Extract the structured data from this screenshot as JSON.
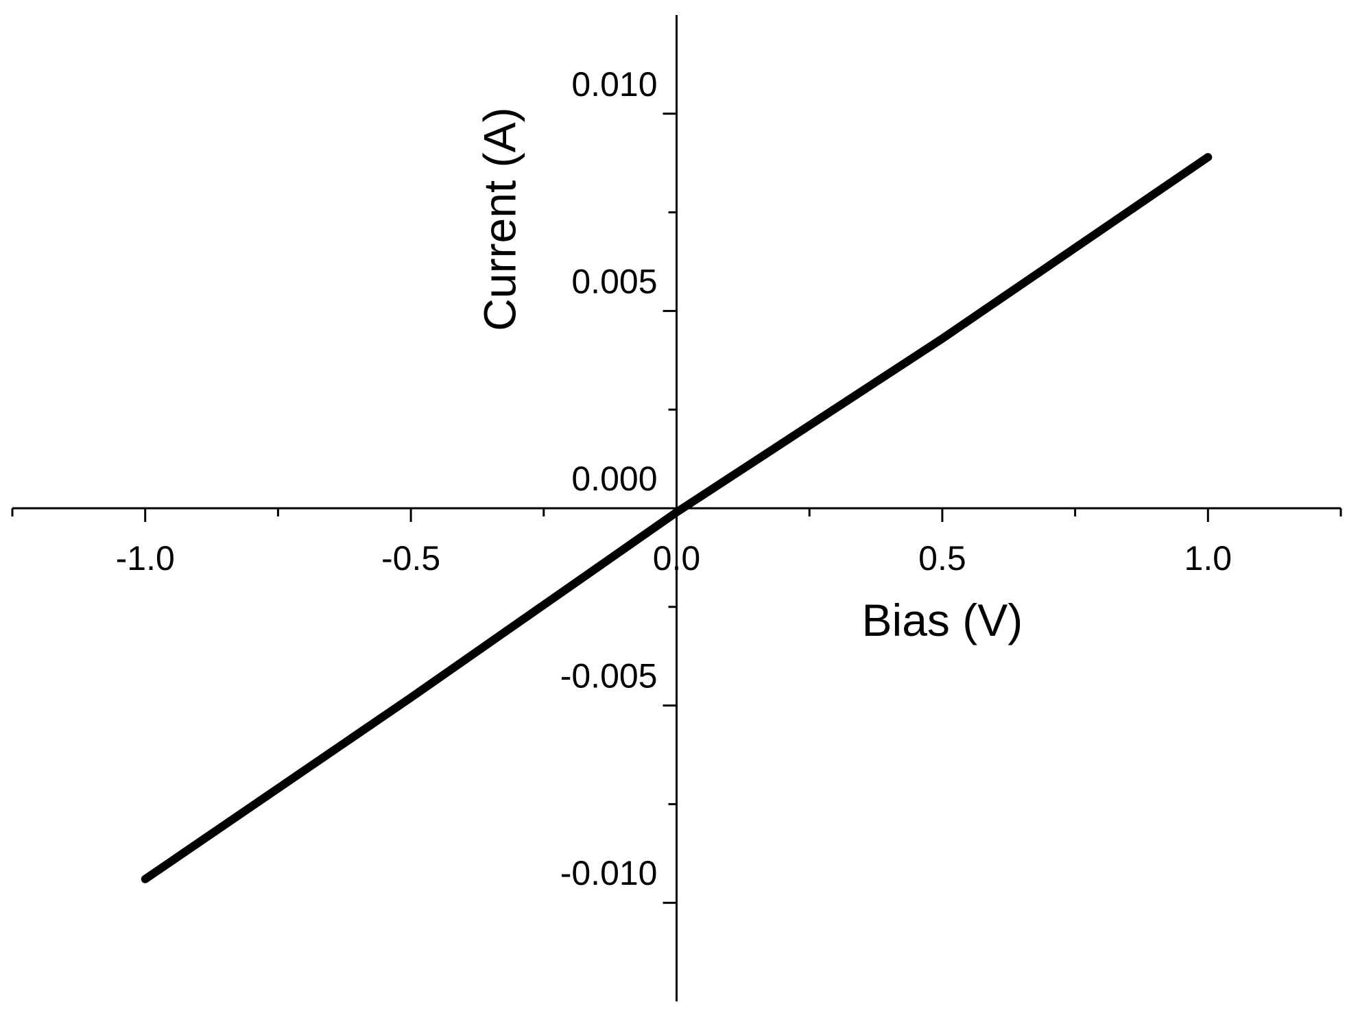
{
  "chart_data": {
    "type": "line",
    "xlabel": "Bias (V)",
    "ylabel": "Current (A)",
    "xlim": [
      -1.25,
      1.25
    ],
    "ylim": [
      -0.0125,
      0.0125
    ],
    "x_ticks": [
      -1.0,
      -0.5,
      0.0,
      0.5,
      1.0
    ],
    "x_tick_labels": [
      "-1.0",
      "-0.5",
      "0.0",
      "0.5",
      "1.0"
    ],
    "x_minor_ticks": [
      -1.25,
      -0.75,
      -0.25,
      0.25,
      0.75,
      1.25
    ],
    "y_ticks": [
      -0.01,
      -0.005,
      0.0,
      0.005,
      0.01
    ],
    "y_tick_labels": [
      "-0.010",
      "-0.005",
      "0.000",
      "0.005",
      "0.010"
    ],
    "y_minor_ticks": [
      -0.0075,
      -0.0025,
      0.0025,
      0.0075
    ],
    "grid": false,
    "axes_style": "crossing at origin",
    "series": [
      {
        "color": "#000000",
        "x": [
          -1.0,
          -0.5,
          0.0,
          0.5,
          1.0
        ],
        "y": [
          -0.0094,
          -0.0048,
          -0.0001,
          0.0043,
          0.0089
        ]
      }
    ]
  }
}
